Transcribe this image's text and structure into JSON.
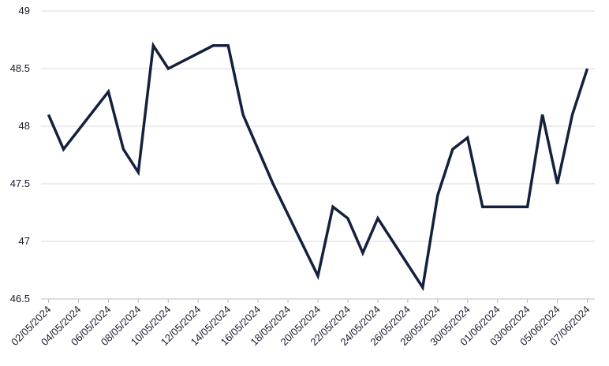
{
  "chart_data": {
    "type": "line",
    "title": "",
    "xlabel": "",
    "ylabel": "",
    "ylim": [
      46.5,
      49
    ],
    "yticks": [
      "46.5",
      "47",
      "47.5",
      "48",
      "48.5",
      "49"
    ],
    "xticks": [
      "02/05/2024",
      "04/05/2024",
      "06/05/2024",
      "08/05/2024",
      "10/05/2024",
      "12/05/2024",
      "14/05/2024",
      "16/05/2024",
      "18/05/2024",
      "20/05/2024",
      "22/05/2024",
      "24/05/2024",
      "26/05/2024",
      "28/05/2024",
      "30/05/2024",
      "01/06/2024",
      "03/06/2024",
      "05/06/2024",
      "07/06/2024"
    ],
    "x": [
      "02/05/2024",
      "03/05/2024",
      "06/05/2024",
      "07/05/2024",
      "08/05/2024",
      "09/05/2024",
      "10/05/2024",
      "13/05/2024",
      "14/05/2024",
      "15/05/2024",
      "17/05/2024",
      "20/05/2024",
      "21/05/2024",
      "22/05/2024",
      "23/05/2024",
      "24/05/2024",
      "27/05/2024",
      "28/05/2024",
      "29/05/2024",
      "30/05/2024",
      "31/05/2024",
      "03/06/2024",
      "04/06/2024",
      "05/06/2024",
      "06/06/2024",
      "07/06/2024"
    ],
    "series": [
      {
        "values": [
          48.1,
          47.8,
          48.3,
          47.8,
          47.6,
          48.7,
          48.5,
          48.7,
          48.7,
          48.1,
          47.5,
          46.7,
          47.3,
          47.2,
          46.9,
          47.2,
          46.6,
          47.4,
          47.8,
          47.9,
          47.3,
          47.3,
          48.1,
          47.5,
          48.1,
          48.5
        ],
        "color": "#14213d"
      }
    ],
    "grid": true,
    "legend": "none"
  }
}
